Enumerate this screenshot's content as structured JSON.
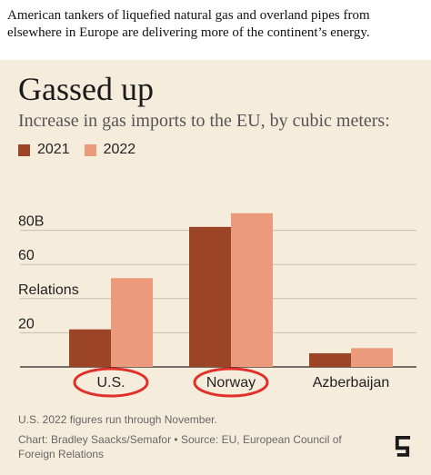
{
  "caption": "American tankers of liquefied natural gas and overland pipes from elsewhere in Europe are delivering more of the continent’s energy.",
  "chart_data": {
    "type": "bar",
    "title": "Gassed up",
    "subtitle": "Increase in gas imports to the EU, by cubic meters:",
    "categories": [
      "U.S.",
      "Norway",
      "Azberbaijan"
    ],
    "series": [
      {
        "name": "2021",
        "color": "#9c4426",
        "values": [
          22,
          82,
          8
        ]
      },
      {
        "name": "2022",
        "color": "#eb9a7c",
        "values": [
          52,
          90,
          11
        ]
      }
    ],
    "ylim": [
      0,
      100
    ],
    "yticks": [
      {
        "value": 20,
        "label": "20"
      },
      {
        "value": 40,
        "label": "Relations"
      },
      {
        "value": 60,
        "label": "60"
      },
      {
        "value": 80,
        "label": "80B"
      }
    ],
    "highlighted_categories": [
      "U.S.",
      "Norway"
    ],
    "highlight_color": "#e0302a",
    "legend_position": "top-left",
    "grid": true
  },
  "footer": {
    "note": "U.S. 2022 figures run through November.",
    "credit": "Chart: Bradley Saacks/Semafor • Source: EU, European Council of Foreign Relations"
  },
  "brand": {
    "logo_icon": "semafor-s-icon"
  }
}
